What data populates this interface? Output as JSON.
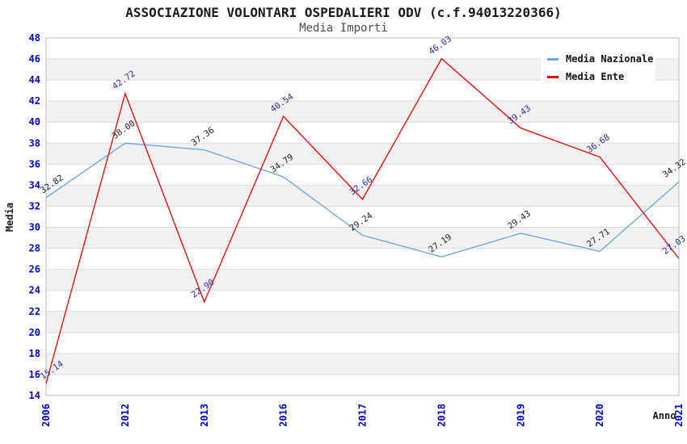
{
  "chart_data": {
    "type": "line",
    "title": "ASSOCIAZIONE VOLONTARI OSPEDALIERI ODV (c.f.94013220366)",
    "subtitle": "Media Importi",
    "xlabel": "Anno",
    "ylabel": "Media",
    "categories": [
      "2006",
      "2012",
      "2013",
      "2016",
      "2017",
      "2018",
      "2019",
      "2020",
      "2021"
    ],
    "series": [
      {
        "name": "Media Nazionale",
        "color": "#6BA5E0",
        "label_color": "#1f1f1f",
        "values": [
          32.82,
          38.0,
          37.36,
          34.79,
          29.24,
          27.19,
          29.43,
          27.71,
          34.32
        ]
      },
      {
        "name": "Media Ente",
        "color": "#EE0000",
        "label_color": "#2E2E9E",
        "values": [
          15.14,
          42.72,
          22.9,
          40.54,
          32.66,
          46.03,
          39.43,
          36.68,
          27.03
        ]
      }
    ],
    "ylim": [
      14,
      48
    ],
    "ytick_step": 2,
    "grid": "horizontal",
    "band_fill": "#F2F2F2",
    "grid_color": "#DCDCDC",
    "spine_color": "#BBBBBB",
    "tick_color": "#0000CD",
    "legend_position": "top-right"
  }
}
